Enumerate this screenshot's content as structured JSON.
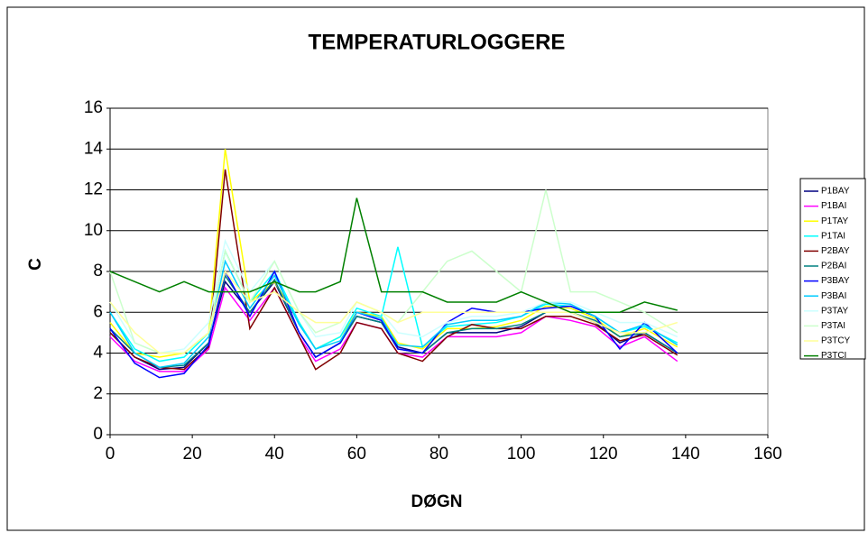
{
  "chart_data": {
    "type": "line",
    "title": "TEMPERATURLOGGERE",
    "x_label": "DØGN",
    "y_label": "C",
    "xlim": [
      0,
      160
    ],
    "xticks": [
      0,
      20,
      40,
      60,
      80,
      100,
      120,
      140,
      160
    ],
    "ylim": [
      0,
      16
    ],
    "yticks": [
      0,
      2,
      4,
      6,
      8,
      10,
      12,
      14,
      16
    ],
    "grid": true,
    "legend": "right",
    "x": [
      0,
      6,
      12,
      18,
      24,
      28,
      34,
      40,
      46,
      50,
      56,
      60,
      66,
      70,
      76,
      82,
      88,
      94,
      100,
      106,
      112,
      118,
      124,
      130,
      138
    ],
    "series": [
      {
        "name": "P1BAY",
        "color": "#000080",
        "values": [
          5,
          3.8,
          3.2,
          3.3,
          4.5,
          7.5,
          6,
          7.5,
          5,
          3.8,
          4.5,
          5.8,
          5.5,
          4.3,
          4,
          5,
          5,
          5,
          5.3,
          6,
          6,
          5.5,
          4.5,
          5,
          4
        ]
      },
      {
        "name": "P1BAI",
        "color": "#ff00ff",
        "values": [
          4.8,
          3.6,
          3.1,
          3.1,
          4.2,
          7.2,
          5.6,
          7.2,
          4.8,
          3.6,
          4.2,
          5.5,
          5.2,
          4,
          3.8,
          4.8,
          4.8,
          4.8,
          5,
          5.8,
          5.6,
          5.3,
          4.3,
          4.8,
          3.6
        ]
      },
      {
        "name": "P1TAY",
        "color": "#ffff00",
        "values": [
          5.5,
          4,
          3.8,
          4,
          5,
          14,
          6.5,
          7.5,
          5.5,
          4.2,
          4.8,
          6,
          5.8,
          4.5,
          4.2,
          5.2,
          5.2,
          5.3,
          5.6,
          6.3,
          6.2,
          5.7,
          4.8,
          5.2,
          4.3
        ]
      },
      {
        "name": "P1TAI",
        "color": "#00ffff",
        "values": [
          6,
          4.2,
          3.6,
          3.8,
          5,
          9,
          6.5,
          8,
          5.5,
          4.2,
          4.8,
          6.2,
          5.8,
          9.2,
          4.3,
          5.3,
          5.4,
          5.5,
          5.8,
          6.4,
          6.3,
          5.8,
          5,
          5.3,
          4.5
        ]
      },
      {
        "name": "P2BAY",
        "color": "#800000",
        "values": [
          5,
          3.8,
          3.3,
          3.2,
          4.3,
          13,
          5.2,
          7.2,
          4.8,
          3.2,
          4,
          5.5,
          5.2,
          4,
          3.6,
          4.8,
          5.4,
          5.2,
          5.2,
          5.8,
          5.8,
          5.4,
          4.6,
          4.9,
          3.9
        ]
      },
      {
        "name": "P2BAI",
        "color": "#008080",
        "values": [
          5.2,
          4,
          3.3,
          3.4,
          4.5,
          7.8,
          6,
          7.6,
          5,
          3.8,
          4.5,
          5.8,
          5.5,
          4.2,
          4,
          5,
          5.2,
          5.2,
          5.4,
          6,
          6,
          5.6,
          4.8,
          5,
          4
        ]
      },
      {
        "name": "P3BAY",
        "color": "#0000ff",
        "values": [
          5.2,
          3.5,
          2.8,
          3,
          4.4,
          8,
          5.8,
          8,
          5,
          3.8,
          4.5,
          6,
          5.6,
          4.2,
          4,
          5.5,
          6.2,
          6,
          6,
          6.2,
          6.3,
          5.8,
          4.2,
          5.5,
          4
        ]
      },
      {
        "name": "P3BAI",
        "color": "#00ccff",
        "values": [
          6,
          4,
          3.3,
          3.5,
          4.8,
          8.5,
          6.2,
          7.8,
          5.4,
          4.2,
          4.6,
          6,
          5.7,
          4.4,
          4.3,
          5.4,
          5.6,
          5.6,
          5.8,
          6.5,
          6.4,
          5.8,
          5,
          5.4,
          4.4
        ]
      },
      {
        "name": "P3TAY",
        "color": "#ccffff",
        "values": [
          6.5,
          4.5,
          4,
          4.2,
          5.5,
          9.5,
          7,
          8.5,
          6,
          4.8,
          5,
          6.5,
          6,
          5,
          4.8,
          5.5,
          5.8,
          5.8,
          6,
          6.5,
          6.5,
          6,
          5.5,
          5.5,
          4.8
        ]
      },
      {
        "name": "P3TAI",
        "color": "#ccffcc",
        "values": [
          8,
          4.5,
          4,
          4,
          5,
          9,
          6.5,
          8.5,
          6,
          5,
          5.5,
          6.5,
          6,
          5.5,
          7,
          8.5,
          9,
          8,
          7,
          12,
          7,
          7,
          6.5,
          6,
          5
        ]
      },
      {
        "name": "P3TCY",
        "color": "#ffff99",
        "values": [
          6.5,
          5,
          4,
          4,
          5,
          8,
          6.5,
          7,
          6,
          5.5,
          5.5,
          6.5,
          6,
          5.5,
          6,
          6,
          6,
          6,
          6,
          6,
          6,
          5.5,
          5,
          5,
          5.5
        ]
      },
      {
        "name": "P3TCI",
        "color": "#008000",
        "values": [
          8,
          7.5,
          7,
          7.5,
          7,
          7,
          7,
          7.5,
          7,
          7,
          7.5,
          11.6,
          7,
          7,
          7,
          6.5,
          6.5,
          6.5,
          7,
          6.5,
          6,
          6,
          6,
          6.5,
          6.1
        ]
      }
    ]
  }
}
